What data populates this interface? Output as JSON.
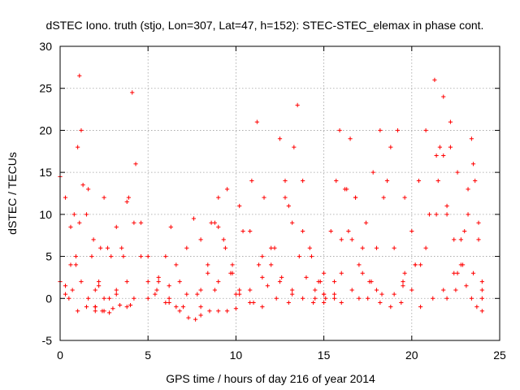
{
  "chart_data": {
    "type": "scatter",
    "title": "dSTEC Iono. truth (stjo, Lon=307, Lat=47, h=152): STEC-STEC_elemax in phase cont.",
    "xlabel": "GPS time / hours of day 216 of year 2014",
    "ylabel": "dSTEC  / TECUs",
    "xlim": [
      0,
      25
    ],
    "ylim": [
      -5,
      30
    ],
    "xticks": [
      "0",
      "5",
      "10",
      "15",
      "20",
      "25"
    ],
    "yticks": [
      "-5",
      "0",
      "5",
      "10",
      "15",
      "20",
      "25",
      "30"
    ],
    "grid": true,
    "marker": "+",
    "marker_color": "#ff0000",
    "series": [
      {
        "x": [
          0.0,
          0.3,
          0.6,
          0.9,
          1.2,
          1.6,
          2.0,
          2.4,
          2.8
        ],
        "y": [
          14.5,
          12.0,
          8.5,
          5.0,
          2.0,
          0.0,
          -1.0,
          -1.5,
          -1.7
        ]
      },
      {
        "x": [
          0.0,
          0.3,
          0.5,
          0.7,
          0.9,
          1.1,
          1.3,
          1.6,
          1.9,
          2.2
        ],
        "y": [
          2.0,
          0.5,
          0.0,
          1.0,
          4.0,
          9.0,
          13.5,
          13.0,
          7.0,
          2.0
        ]
      },
      {
        "x": [
          0.3,
          0.6,
          0.8,
          1.0,
          1.1,
          1.2,
          1.5,
          1.8,
          2.2,
          2.8,
          3.4
        ],
        "y": [
          1.5,
          4.0,
          10.0,
          18.0,
          26.5,
          20.0,
          10.0,
          5.0,
          1.5,
          0.0,
          -0.8
        ]
      },
      {
        "x": [
          1.0,
          1.5,
          2.0,
          2.3,
          2.5,
          2.7,
          3.2,
          3.8
        ],
        "y": [
          -1.5,
          -1.0,
          1.0,
          6.0,
          12.0,
          6.0,
          1.0,
          -1.0
        ]
      },
      {
        "x": [
          2.0,
          2.5,
          2.9,
          3.2,
          3.5,
          3.8,
          4.2
        ],
        "y": [
          -1.5,
          0.0,
          5.0,
          8.5,
          6.0,
          2.0,
          0.0
        ]
      },
      {
        "x": [
          2.5,
          3.2,
          3.6,
          3.9,
          4.1,
          4.3,
          4.6,
          5.0,
          5.6,
          6.2
        ],
        "y": [
          -1.5,
          0.5,
          5.0,
          12.0,
          24.5,
          16.0,
          9.0,
          5.0,
          2.5,
          1.5
        ]
      },
      {
        "x": [
          3.8,
          4.2,
          4.6,
          5.0,
          5.4,
          6.0,
          6.6
        ],
        "y": [
          11.5,
          9.0,
          5.0,
          2.0,
          0.5,
          -0.5,
          -1.0
        ]
      },
      {
        "x": [
          2.0,
          3.0,
          4.0,
          5.0,
          5.6,
          6.0,
          6.3,
          6.6,
          7.2,
          8.0
        ],
        "y": [
          -1.0,
          -1.2,
          -0.8,
          0.0,
          2.0,
          5.0,
          8.5,
          4.0,
          0.5,
          -1.0
        ]
      },
      {
        "x": [
          5.5,
          6.2,
          6.8,
          7.2,
          7.6,
          8.0,
          8.4,
          8.8
        ],
        "y": [
          1.0,
          0.0,
          2.0,
          6.0,
          9.5,
          7.0,
          3.0,
          1.0
        ]
      },
      {
        "x": [
          6.2,
          6.8,
          7.3,
          7.7,
          8.0,
          8.5,
          9.0,
          9.5,
          10.0
        ],
        "y": [
          -0.5,
          -1.5,
          -2.3,
          -2.5,
          -2.0,
          -1.5,
          -1.5,
          -1.5,
          -1.2
        ]
      },
      {
        "x": [
          7.0,
          7.8,
          8.4,
          8.8,
          9.0,
          9.3,
          9.7,
          10.2,
          11.0
        ],
        "y": [
          -1.0,
          0.5,
          4.0,
          9.0,
          12.0,
          7.0,
          3.0,
          0.5,
          -0.5
        ]
      },
      {
        "x": [
          8.6,
          9.0,
          9.4,
          9.8,
          10.2,
          10.8,
          11.5
        ],
        "y": [
          9.0,
          8.5,
          6.0,
          3.0,
          1.0,
          -0.5,
          -1.0
        ]
      },
      {
        "x": [
          8.0,
          9.0,
          9.8,
          10.4,
          10.9,
          11.2,
          11.6,
          12.0,
          12.5,
          13.2
        ],
        "y": [
          1.0,
          2.0,
          4.0,
          8.0,
          14.0,
          21.0,
          12.0,
          6.0,
          2.0,
          0.5
        ]
      },
      {
        "x": [
          9.5,
          10.2,
          10.8,
          11.3,
          11.8,
          12.3,
          13.0
        ],
        "y": [
          13.0,
          11.0,
          8.0,
          4.0,
          1.5,
          0.0,
          -0.5
        ]
      },
      {
        "x": [
          10.0,
          10.8,
          11.5,
          12.2,
          12.8,
          13.3,
          13.5,
          13.8,
          14.2,
          14.8
        ],
        "y": [
          0.5,
          1.0,
          2.5,
          6.0,
          12.0,
          18.0,
          23.0,
          14.0,
          6.0,
          2.0
        ]
      },
      {
        "x": [
          11.5,
          12.0,
          12.6,
          13.2,
          13.8,
          14.4,
          15.0
        ],
        "y": [
          5.0,
          4.0,
          2.5,
          1.0,
          0.0,
          -0.5,
          -0.5
        ]
      },
      {
        "x": [
          12.5,
          12.8,
          13.2,
          13.6,
          14.0,
          14.5,
          15.0,
          15.6
        ],
        "y": [
          19.0,
          14.0,
          9.0,
          5.0,
          2.5,
          1.0,
          0.5,
          0.0
        ]
      },
      {
        "x": [
          13.0,
          13.8,
          14.3,
          14.7,
          15.1,
          15.6,
          16.0,
          16.4,
          16.8
        ],
        "y": [
          11.0,
          8.0,
          5.0,
          2.0,
          0.0,
          0.5,
          3.0,
          8.0,
          12.0
        ]
      },
      {
        "x": [
          14.5,
          15.0,
          15.4,
          15.7,
          15.9,
          16.2,
          16.6,
          17.2,
          18.0
        ],
        "y": [
          0.0,
          3.0,
          8.0,
          14.0,
          20.0,
          13.0,
          7.0,
          3.0,
          1.0
        ]
      },
      {
        "x": [
          15.0,
          15.6,
          16.0,
          16.3,
          16.5,
          16.8,
          17.2,
          17.7,
          18.3
        ],
        "y": [
          0.5,
          2.0,
          7.0,
          13.0,
          19.0,
          12.0,
          6.0,
          2.0,
          0.5
        ]
      },
      {
        "x": [
          16.0,
          16.6,
          17.0,
          17.4,
          17.8,
          18.2,
          18.6,
          19.0,
          19.5
        ],
        "y": [
          -0.5,
          1.0,
          4.0,
          9.0,
          15.0,
          20.0,
          14.0,
          6.0,
          1.5
        ]
      },
      {
        "x": [
          17.0,
          17.6,
          18.0,
          18.4,
          18.8,
          19.2,
          19.6,
          20.2
        ],
        "y": [
          0.0,
          2.0,
          6.0,
          12.0,
          18.0,
          20.0,
          12.0,
          4.0
        ]
      },
      {
        "x": [
          17.5,
          18.2,
          18.8,
          19.4,
          20.0,
          20.5,
          21.0,
          21.4,
          21.8,
          22.2
        ],
        "y": [
          0.0,
          -0.5,
          -1.0,
          -0.5,
          1.0,
          4.0,
          10.0,
          17.0,
          24.0,
          18.0
        ]
      },
      {
        "x": [
          19.0,
          19.6,
          20.0,
          20.4,
          20.8,
          21.3,
          21.6,
          22.0,
          22.6
        ],
        "y": [
          0.5,
          3.0,
          8.0,
          14.0,
          20.0,
          26.0,
          18.0,
          10.0,
          3.0
        ]
      },
      {
        "x": [
          19.5,
          20.2,
          20.8,
          21.4,
          21.8,
          22.2,
          22.6,
          23.0,
          23.5,
          24.0
        ],
        "y": [
          2.0,
          4.0,
          6.0,
          10.0,
          17.0,
          21.0,
          15.0,
          8.0,
          3.0,
          0.0
        ]
      },
      {
        "x": [
          20.5,
          21.2,
          21.8,
          22.4,
          22.8,
          23.2,
          23.4,
          23.6,
          23.8,
          24.0
        ],
        "y": [
          -1.0,
          0.0,
          1.0,
          3.0,
          7.0,
          13.0,
          19.0,
          14.0,
          7.0,
          1.0
        ]
      },
      {
        "x": [
          21.5,
          22.0,
          22.4,
          22.8,
          23.1,
          23.4,
          23.7,
          24.0
        ],
        "y": [
          14.0,
          11.0,
          7.0,
          4.0,
          1.5,
          0.0,
          -1.0,
          -1.5
        ]
      },
      {
        "x": [
          22.0,
          22.5,
          22.9,
          23.2,
          23.5,
          23.8,
          24.0
        ],
        "y": [
          0.0,
          1.0,
          4.0,
          10.0,
          16.0,
          9.0,
          2.0
        ]
      }
    ]
  }
}
